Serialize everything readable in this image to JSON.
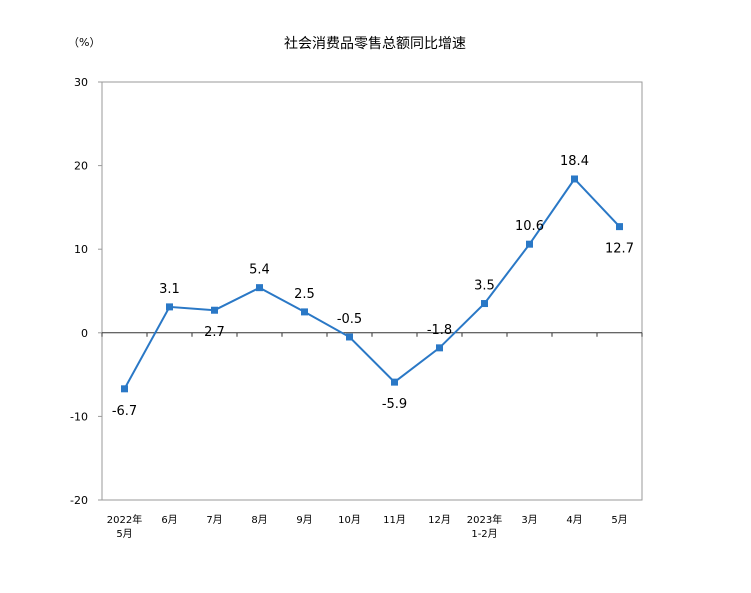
{
  "chart_data": {
    "type": "line",
    "title": "社会消费品零售总额同比增速",
    "unit_label": "（%）",
    "xlabel": "",
    "ylabel": "",
    "ylim": [
      -20,
      30
    ],
    "yticks": [
      -20,
      -10,
      0,
      10,
      20,
      30
    ],
    "grid": false,
    "legend": "none",
    "categories": [
      [
        "2022年",
        "5月"
      ],
      [
        "6月"
      ],
      [
        "7月"
      ],
      [
        "8月"
      ],
      [
        "9月"
      ],
      [
        "10月"
      ],
      [
        "11月"
      ],
      [
        "12月"
      ],
      [
        "2023年",
        "1-2月"
      ],
      [
        "3月"
      ],
      [
        "4月"
      ],
      [
        "5月"
      ]
    ],
    "series": [
      {
        "values": [
          -6.7,
          3.1,
          2.7,
          5.4,
          2.5,
          -0.5,
          -5.9,
          -1.8,
          3.5,
          10.6,
          18.4,
          12.7
        ],
        "labels": [
          "-6.7",
          "3.1",
          "2.7",
          "5.4",
          "2.5",
          "-0.5",
          "-5.9",
          "-1.8",
          "3.5",
          "10.6",
          "18.4",
          "12.7"
        ],
        "color": "#2a78c6"
      }
    ]
  }
}
